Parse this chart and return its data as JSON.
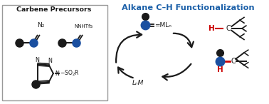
{
  "title": "Alkane C–H Functionalization",
  "title_color": "#1a5fa8",
  "bg_color": "#ffffff",
  "black": "#1a1a1a",
  "blue": "#1a4fa0",
  "red": "#cc0000",
  "carbene_label": "Carbene Precursors",
  "n2_label": "N₂",
  "nnhtfs_label": "NNHTfs",
  "mln_label": "=MLₙ",
  "lnm_label": "LₙM"
}
